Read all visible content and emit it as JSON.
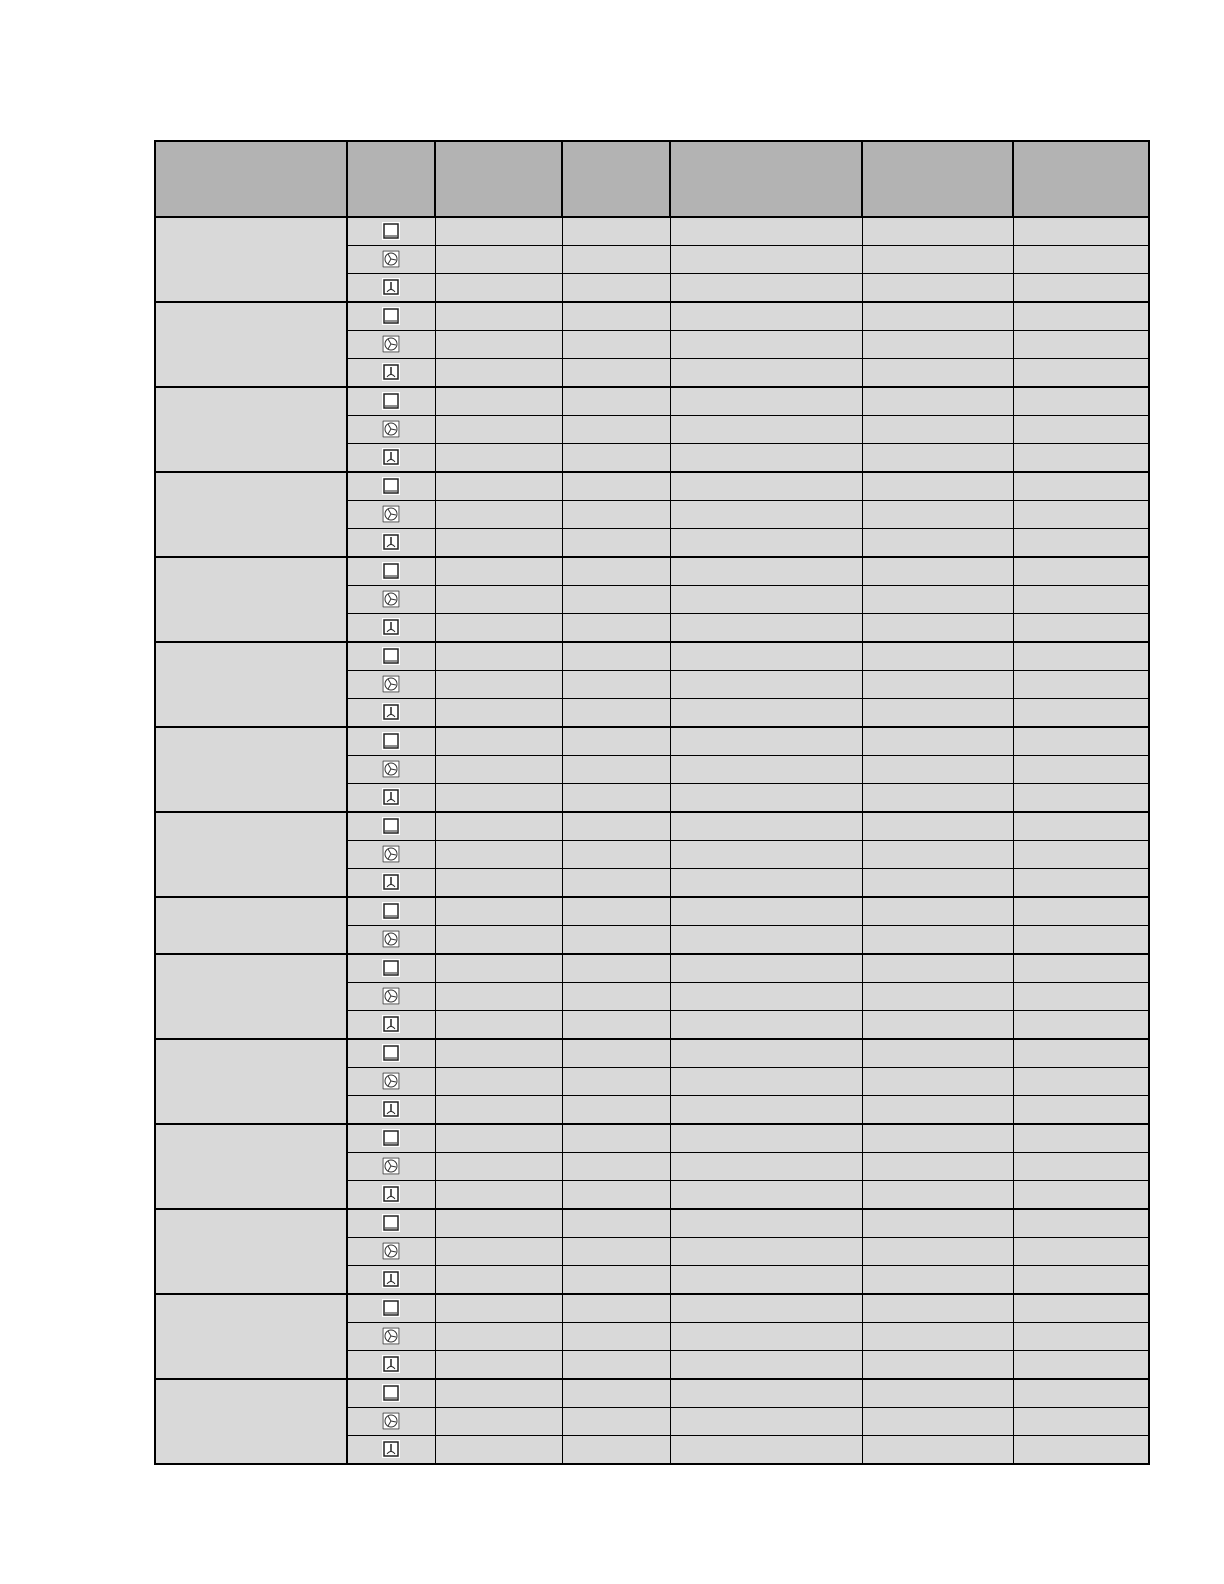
{
  "table": {
    "columns": [
      "",
      "",
      "",
      "",
      "",
      "",
      ""
    ],
    "groups": [
      {
        "modes": [
          "conventional-icon",
          "fan-icon",
          "fan-bottom-heat-icon"
        ]
      },
      {
        "modes": [
          "conventional-icon",
          "fan-icon",
          "fan-bottom-heat-icon"
        ]
      },
      {
        "modes": [
          "conventional-icon",
          "fan-icon",
          "fan-bottom-heat-icon"
        ]
      },
      {
        "modes": [
          "conventional-icon",
          "fan-icon",
          "fan-bottom-heat-icon"
        ]
      },
      {
        "modes": [
          "conventional-icon",
          "fan-icon",
          "fan-bottom-heat-icon"
        ]
      },
      {
        "modes": [
          "conventional-icon",
          "fan-icon",
          "fan-bottom-heat-icon"
        ]
      },
      {
        "modes": [
          "conventional-icon",
          "fan-icon",
          "fan-bottom-heat-icon"
        ]
      },
      {
        "modes": [
          "conventional-icon",
          "fan-icon",
          "fan-bottom-heat-icon"
        ]
      },
      {
        "modes": [
          "conventional-icon",
          "fan-icon"
        ]
      },
      {
        "modes": [
          "conventional-icon",
          "fan-icon",
          "fan-bottom-heat-icon"
        ]
      },
      {
        "modes": [
          "conventional-icon",
          "fan-icon",
          "fan-bottom-heat-icon"
        ]
      },
      {
        "modes": [
          "conventional-icon",
          "fan-icon",
          "fan-bottom-heat-icon"
        ]
      },
      {
        "modes": [
          "conventional-icon",
          "fan-icon",
          "fan-bottom-heat-icon"
        ]
      },
      {
        "modes": [
          "conventional-icon",
          "fan-icon",
          "fan-bottom-heat-icon"
        ]
      },
      {
        "modes": [
          "conventional-icon",
          "fan-icon",
          "fan-bottom-heat-icon"
        ]
      }
    ]
  },
  "colors": {
    "header": "#b3b3b3",
    "cell": "#d9d9d9",
    "border": "#000000"
  }
}
